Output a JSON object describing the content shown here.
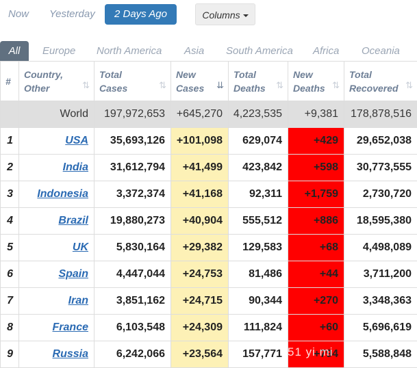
{
  "date_tabs": [
    {
      "label": "Now",
      "active": false
    },
    {
      "label": "Yesterday",
      "active": false
    },
    {
      "label": "2 Days Ago",
      "active": true
    }
  ],
  "columns_button": "Columns",
  "region_tabs": [
    "All",
    "Europe",
    "North America",
    "Asia",
    "South America",
    "Africa",
    "Oceania"
  ],
  "table": {
    "headers": {
      "rank": "#",
      "country": [
        "Country,",
        "Other"
      ],
      "total_cases": [
        "Total",
        "Cases"
      ],
      "new_cases": [
        "New",
        "Cases"
      ],
      "total_deaths": [
        "Total",
        "Deaths"
      ],
      "new_deaths": [
        "New",
        "Deaths"
      ],
      "total_recovered": [
        "Total",
        "Recovered"
      ]
    },
    "sort_icons": {
      "inactive": "⇅",
      "active": "⇊"
    },
    "world": {
      "country": "World",
      "total_cases": "197,972,653",
      "new_cases": "+645,270",
      "total_deaths": "4,223,535",
      "new_deaths": "+9,381",
      "total_recovered": "178,878,516"
    },
    "rows": [
      {
        "rank": "1",
        "country": "USA",
        "total_cases": "35,693,126",
        "new_cases": "+101,098",
        "total_deaths": "629,074",
        "new_deaths": "+429",
        "total_recovered": "29,652,038"
      },
      {
        "rank": "2",
        "country": "India",
        "total_cases": "31,612,794",
        "new_cases": "+41,499",
        "total_deaths": "423,842",
        "new_deaths": "+598",
        "total_recovered": "30,773,555"
      },
      {
        "rank": "3",
        "country": "Indonesia",
        "total_cases": "3,372,374",
        "new_cases": "+41,168",
        "total_deaths": "92,311",
        "new_deaths": "+1,759",
        "total_recovered": "2,730,720"
      },
      {
        "rank": "4",
        "country": "Brazil",
        "total_cases": "19,880,273",
        "new_cases": "+40,904",
        "total_deaths": "555,512",
        "new_deaths": "+886",
        "total_recovered": "18,595,380"
      },
      {
        "rank": "5",
        "country": "UK",
        "total_cases": "5,830,164",
        "new_cases": "+29,382",
        "total_deaths": "129,583",
        "new_deaths": "+68",
        "total_recovered": "4,498,089"
      },
      {
        "rank": "6",
        "country": "Spain",
        "total_cases": "4,447,044",
        "new_cases": "+24,753",
        "total_deaths": "81,486",
        "new_deaths": "+44",
        "total_recovered": "3,711,200"
      },
      {
        "rank": "7",
        "country": "Iran",
        "total_cases": "3,851,162",
        "new_cases": "+24,715",
        "total_deaths": "90,344",
        "new_deaths": "+270",
        "total_recovered": "3,348,363"
      },
      {
        "rank": "8",
        "country": "France",
        "total_cases": "6,103,548",
        "new_cases": "+24,309",
        "total_deaths": "111,824",
        "new_deaths": "+60",
        "total_recovered": "5,696,619"
      },
      {
        "rank": "9",
        "country": "Russia",
        "total_cases": "6,242,066",
        "new_cases": "+23,564",
        "total_deaths": "157,771",
        "new_deaths": "+794",
        "total_recovered": "5,588,848"
      }
    ]
  },
  "watermark": "51 yi mi",
  "colors": {
    "active_tab": "#337ab7",
    "new_cases_bg": "#fdf1b6",
    "new_deaths_bg": "#ff0000",
    "world_bg": "#dfdfdf",
    "link": "#2a6ab3"
  }
}
